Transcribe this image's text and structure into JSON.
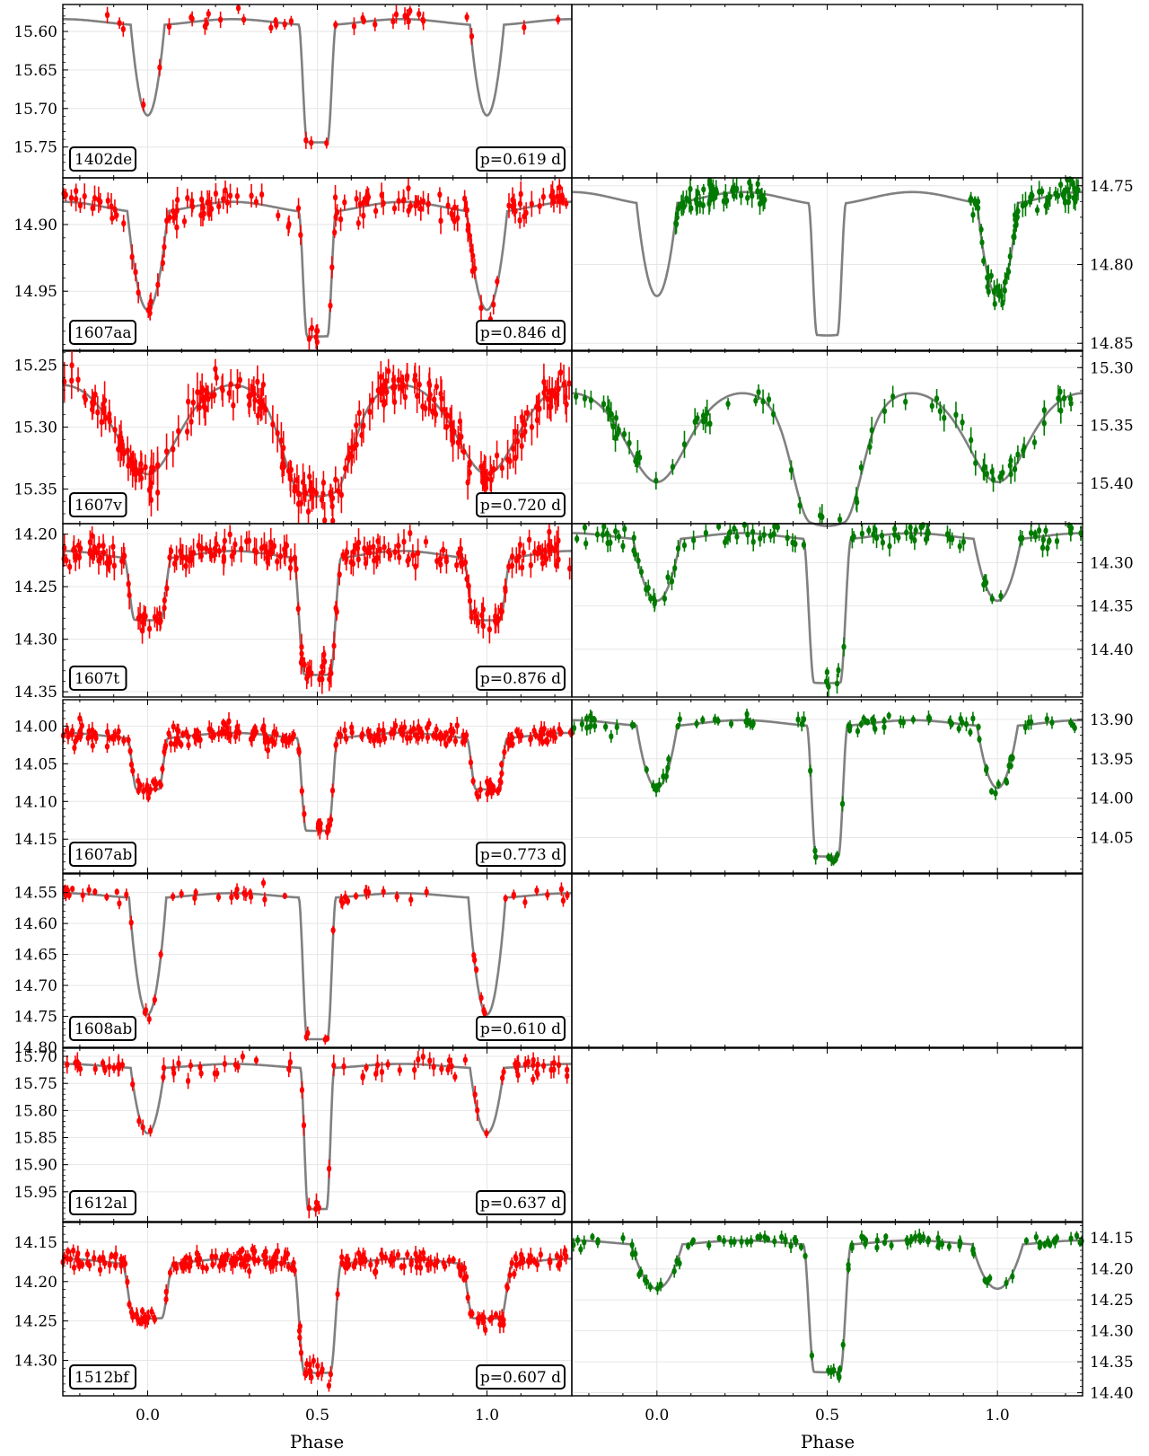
{
  "figure": {
    "xlabel": "Phase",
    "x_tick_labels": [
      "0.0",
      "0.5",
      "1.0"
    ],
    "colors": {
      "left_points": "#ff0000",
      "right_points": "#007a00",
      "model": "#808080",
      "grid": "#e6e6e6"
    }
  },
  "chart_data": [
    {
      "type": "scatter",
      "panel": "left",
      "star_label": "1402de",
      "period_label": "p=0.619 d",
      "xlim": [
        -0.25,
        1.25
      ],
      "ylim": [
        15.79,
        15.565
      ],
      "yticks": [
        "15.60",
        "15.65",
        "15.70",
        "15.75"
      ],
      "y_inverted": true,
      "model": {
        "base": 15.588,
        "p_depth": 0.117,
        "s_depth": 0.152,
        "p_width": 0.05,
        "s_width": 0.055,
        "flat_bottom": "secondary"
      },
      "series": [
        {
          "name": "",
          "n_points": 40,
          "noise": 0.006
        }
      ]
    },
    {
      "type": "scatter",
      "panel": "left",
      "star_label": "1607aa",
      "period_label": "p=0.846 d",
      "xlim": [
        -0.25,
        1.25
      ],
      "ylim": [
        14.995,
        14.865
      ],
      "yticks": [
        "14.90",
        "14.95"
      ],
      "y_inverted": true,
      "model": {
        "base": 14.887,
        "p_depth": 0.073,
        "s_depth": 0.093,
        "p_width": 0.06,
        "s_width": 0.055,
        "flat_bottom": "secondary"
      },
      "series": [
        {
          "name": "",
          "n_points": 150,
          "noise": 0.005
        }
      ]
    },
    {
      "type": "scatter",
      "panel": "right",
      "star_label": "1607aa",
      "period_label": "",
      "xlim": [
        -0.25,
        1.25
      ],
      "ylim": [
        14.855,
        14.745
      ],
      "yticks": [
        "14.75",
        "14.80",
        "14.85"
      ],
      "y_inverted": true,
      "model": {
        "base": 14.758,
        "p_depth": 0.058,
        "s_depth": 0.083,
        "p_width": 0.06,
        "s_width": 0.055,
        "flat_bottom": "secondary"
      },
      "series": [
        {
          "name": "",
          "n_points": 120,
          "noise": 0.004,
          "phase_ranges": [
            [
              0.05,
              0.32
            ],
            [
              0.92,
              1.25
            ]
          ]
        }
      ]
    },
    {
      "type": "scatter",
      "panel": "left",
      "star_label": "1607v",
      "period_label": "p=0.720 d",
      "xlim": [
        -0.25,
        1.25
      ],
      "ylim": [
        15.378,
        15.238
      ],
      "yticks": [
        "15.25",
        "15.30",
        "15.35"
      ],
      "y_inverted": true,
      "model": {
        "base": 15.282,
        "p_depth": 0.04,
        "s_depth": 0.058,
        "p_width": 0.13,
        "s_width": 0.11,
        "flat_bottom": "secondary",
        "shape": "smooth"
      },
      "series": [
        {
          "name": "",
          "n_points": 260,
          "noise": 0.008
        }
      ]
    },
    {
      "type": "scatter",
      "panel": "right",
      "star_label": "1607v",
      "period_label": "",
      "xlim": [
        -0.25,
        1.25
      ],
      "ylim": [
        15.435,
        15.285
      ],
      "yticks": [
        "15.30",
        "15.35",
        "15.40"
      ],
      "y_inverted": true,
      "model": {
        "base": 15.338,
        "p_depth": 0.045,
        "s_depth": 0.083,
        "p_width": 0.13,
        "s_width": 0.11,
        "flat_bottom": "secondary",
        "shape": "smooth"
      },
      "series": [
        {
          "name": "",
          "n_points": 80,
          "noise": 0.006
        }
      ]
    },
    {
      "type": "scatter",
      "panel": "left",
      "star_label": "1607t",
      "period_label": "p=0.876 d",
      "xlim": [
        -0.25,
        1.25
      ],
      "ylim": [
        14.355,
        14.19
      ],
      "yticks": [
        "14.20",
        "14.25",
        "14.30",
        "14.35"
      ],
      "y_inverted": true,
      "model": {
        "base": 14.22,
        "p_depth": 0.058,
        "s_depth": 0.11,
        "p_width": 0.07,
        "s_width": 0.07,
        "flat_bottom": "both"
      },
      "series": [
        {
          "name": "",
          "n_points": 240,
          "noise": 0.007
        }
      ]
    },
    {
      "type": "scatter",
      "panel": "right",
      "star_label": "1607t",
      "period_label": "",
      "xlim": [
        -0.25,
        1.25
      ],
      "ylim": [
        14.455,
        14.255
      ],
      "yticks": [
        "14.30",
        "14.35",
        "14.40"
      ],
      "y_inverted": true,
      "model": {
        "base": 14.27,
        "p_depth": 0.07,
        "s_depth": 0.165,
        "p_width": 0.07,
        "s_width": 0.07,
        "flat_bottom": "secondary"
      },
      "series": [
        {
          "name": "",
          "n_points": 110,
          "noise": 0.006
        }
      ]
    },
    {
      "type": "scatter",
      "panel": "left",
      "star_label": "1607ab",
      "period_label": "p=0.773 d",
      "xlim": [
        -0.25,
        1.25
      ],
      "ylim": [
        14.195,
        13.965
      ],
      "yticks": [
        "14.00",
        "14.05",
        "14.10",
        "14.15"
      ],
      "y_inverted": true,
      "model": {
        "base": 14.013,
        "p_depth": 0.067,
        "s_depth": 0.122,
        "p_width": 0.06,
        "s_width": 0.06,
        "flat_bottom": "both"
      },
      "series": [
        {
          "name": "",
          "n_points": 260,
          "noise": 0.006
        }
      ]
    },
    {
      "type": "scatter",
      "panel": "right",
      "star_label": "1607ab",
      "period_label": "",
      "xlim": [
        -0.25,
        1.25
      ],
      "ylim": [
        14.095,
        13.875
      ],
      "yticks": [
        "13.90",
        "13.95",
        "14.00",
        "14.05"
      ],
      "y_inverted": true,
      "model": {
        "base": 13.905,
        "p_depth": 0.078,
        "s_depth": 0.165,
        "p_width": 0.06,
        "s_width": 0.06,
        "flat_bottom": "secondary"
      },
      "series": [
        {
          "name": "",
          "n_points": 100,
          "noise": 0.005
        }
      ]
    },
    {
      "type": "scatter",
      "panel": "left",
      "star_label": "1608ab",
      "period_label": "p=0.610 d",
      "xlim": [
        -0.25,
        1.25
      ],
      "ylim": [
        14.8,
        14.52
      ],
      "yticks": [
        "14.55",
        "14.60",
        "14.65",
        "14.70",
        "14.75",
        "14.80"
      ],
      "y_inverted": true,
      "model": {
        "base": 14.555,
        "p_depth": 0.188,
        "s_depth": 0.228,
        "p_width": 0.055,
        "s_width": 0.055,
        "flat_bottom": "secondary"
      },
      "series": [
        {
          "name": "",
          "n_points": 70,
          "noise": 0.006
        }
      ]
    },
    {
      "type": "scatter",
      "panel": "left",
      "star_label": "1612al",
      "period_label": "p=0.637 d",
      "xlim": [
        -0.25,
        1.25
      ],
      "ylim": [
        16.005,
        15.685
      ],
      "yticks": [
        "15.70",
        "15.75",
        "15.80",
        "15.85",
        "15.90",
        "15.95"
      ],
      "y_inverted": true,
      "model": {
        "base": 15.718,
        "p_depth": 0.12,
        "s_depth": 0.26,
        "p_width": 0.05,
        "s_width": 0.05,
        "flat_bottom": "secondary"
      },
      "series": [
        {
          "name": "",
          "n_points": 90,
          "noise": 0.01
        }
      ]
    },
    {
      "type": "scatter",
      "panel": "left",
      "star_label": "1512bf",
      "period_label": "p=0.607 d",
      "xlim": [
        -0.25,
        1.25
      ],
      "ylim": [
        14.345,
        14.125
      ],
      "yticks": [
        "14.15",
        "14.20",
        "14.25",
        "14.30"
      ],
      "y_inverted": true,
      "model": {
        "base": 14.175,
        "p_depth": 0.068,
        "s_depth": 0.137,
        "p_width": 0.075,
        "s_width": 0.07,
        "flat_bottom": "both"
      },
      "series": [
        {
          "name": "",
          "n_points": 260,
          "noise": 0.006
        }
      ]
    },
    {
      "type": "scatter",
      "panel": "right",
      "star_label": "1512bf",
      "period_label": "",
      "xlim": [
        -0.25,
        1.25
      ],
      "ylim": [
        14.405,
        14.125
      ],
      "yticks": [
        "14.15",
        "14.20",
        "14.25",
        "14.30",
        "14.35",
        "14.40"
      ],
      "y_inverted": true,
      "model": {
        "base": 14.158,
        "p_depth": 0.07,
        "s_depth": 0.205,
        "p_width": 0.075,
        "s_width": 0.07,
        "flat_bottom": "secondary"
      },
      "series": [
        {
          "name": "",
          "n_points": 110,
          "noise": 0.006
        }
      ]
    }
  ]
}
